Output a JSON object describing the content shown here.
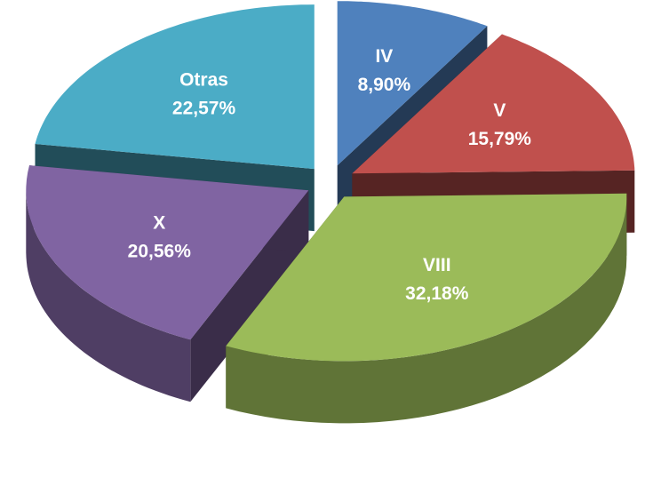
{
  "chart_data": {
    "type": "pie3d",
    "categories": [
      "IV",
      "V",
      "VIII",
      "X",
      "Otras"
    ],
    "values": [
      8.9,
      15.79,
      32.18,
      20.56,
      22.57
    ],
    "value_labels": [
      "8,90%",
      "15,79%",
      "32,18%",
      "20,56%",
      "22,57%"
    ],
    "colors": [
      "#4f81bd",
      "#c0504d",
      "#9bbb59",
      "#8064a2",
      "#4bacc6"
    ]
  }
}
